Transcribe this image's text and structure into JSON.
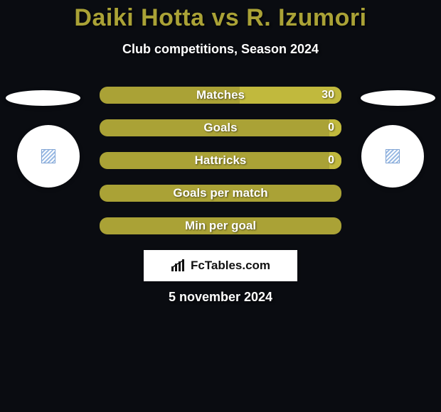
{
  "colors": {
    "background": "#0a0c11",
    "title": "#aaa236",
    "text": "#ffffff",
    "bar_base": "#aaa236",
    "bar_fill_left": "#c1b93d",
    "bar_fill_right": "#c1b93d",
    "banner_bg": "#ffffff",
    "banner_text": "#111111"
  },
  "title": "Daiki Hotta vs R. Izumori",
  "subtitle": "Club competitions, Season 2024",
  "banner": "FcTables.com",
  "date": "5 november 2024",
  "bars": [
    {
      "label": "Matches",
      "left_value": "",
      "right_value": "30",
      "left_pct": 0,
      "right_pct": 42
    },
    {
      "label": "Goals",
      "left_value": "",
      "right_value": "0",
      "left_pct": 0,
      "right_pct": 5
    },
    {
      "label": "Hattricks",
      "left_value": "",
      "right_value": "0",
      "left_pct": 0,
      "right_pct": 5
    },
    {
      "label": "Goals per match",
      "left_value": "",
      "right_value": "",
      "left_pct": 0,
      "right_pct": 0
    },
    {
      "label": "Min per goal",
      "left_value": "",
      "right_value": "",
      "left_pct": 0,
      "right_pct": 0
    }
  ]
}
